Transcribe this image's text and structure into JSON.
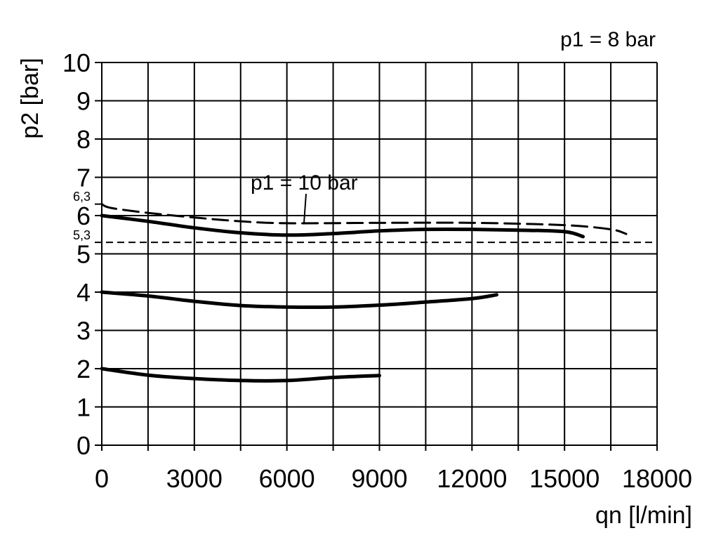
{
  "chart_data": {
    "type": "line",
    "title": "",
    "xlabel": "qn [l/min]",
    "ylabel": "p2 [bar]",
    "xlim": [
      0,
      18000
    ],
    "ylim": [
      0,
      10
    ],
    "grid": true,
    "x_ticks": [
      0,
      3000,
      6000,
      9000,
      12000,
      15000,
      18000
    ],
    "x_tick_labels": [
      "0",
      "3000",
      "6000",
      "9000",
      "12000",
      "15000",
      "18000"
    ],
    "y_ticks": [
      0,
      1,
      2,
      3,
      4,
      5,
      6,
      7,
      8,
      9,
      10
    ],
    "y_tick_labels": [
      "0",
      "1",
      "2",
      "3",
      "4",
      "5",
      "6",
      "7",
      "8",
      "9",
      "10"
    ],
    "annotations": {
      "main_condition": "p1 = 8 bar",
      "dashed_curve_label": "p1 = 10 bar",
      "ref_high": "6,3",
      "ref_low": "5,3"
    },
    "reference_line": {
      "y": 5.3,
      "style": "dashed"
    },
    "series": [
      {
        "style": "solid",
        "x": [
          0,
          1500,
          3000,
          4500,
          6000,
          7500,
          9000,
          10500,
          12000,
          13500,
          15000,
          15600
        ],
        "y": [
          6.0,
          5.85,
          5.68,
          5.55,
          5.49,
          5.53,
          5.6,
          5.64,
          5.64,
          5.62,
          5.58,
          5.45
        ]
      },
      {
        "name": "p1 = 10 bar",
        "style": "dashed",
        "x": [
          0,
          300,
          1500,
          3000,
          4500,
          6000,
          9000,
          12000,
          15000,
          16500,
          17000
        ],
        "y": [
          6.3,
          6.2,
          6.07,
          5.95,
          5.85,
          5.8,
          5.81,
          5.81,
          5.75,
          5.64,
          5.52
        ]
      },
      {
        "style": "solid",
        "x": [
          0,
          1500,
          3000,
          4500,
          6000,
          7500,
          9000,
          10500,
          12000,
          12800
        ],
        "y": [
          4.0,
          3.9,
          3.76,
          3.65,
          3.61,
          3.61,
          3.66,
          3.74,
          3.83,
          3.93
        ]
      },
      {
        "style": "solid",
        "x": [
          0,
          1500,
          3000,
          4500,
          6000,
          7500,
          9000
        ],
        "y": [
          2.0,
          1.83,
          1.74,
          1.69,
          1.69,
          1.77,
          1.82
        ]
      }
    ]
  }
}
